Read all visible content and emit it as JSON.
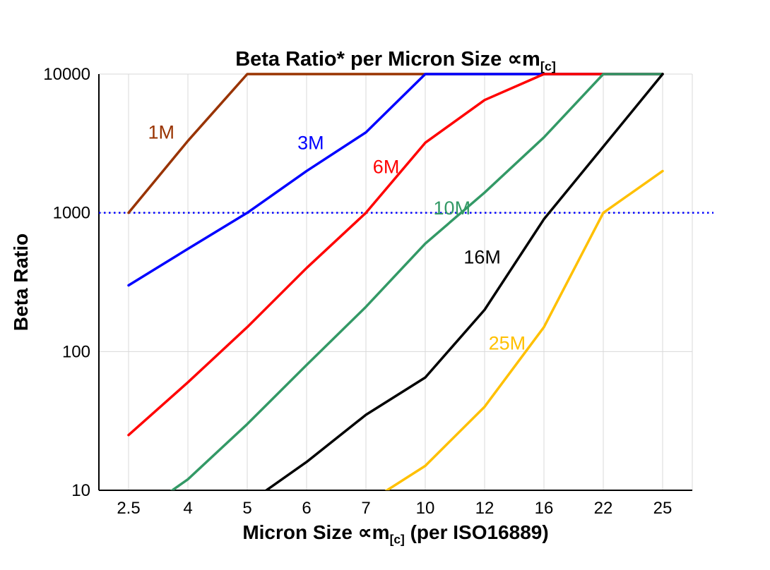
{
  "chart_data": {
    "type": "line",
    "title": {
      "text": "Beta Ratio* per Micron Size ∝m",
      "subscript": "[c]"
    },
    "xlabel": {
      "text": "Micron Size ∝m",
      "subscript": "[c]",
      "suffix": " (per ISO16889)"
    },
    "ylabel": "Beta Ratio",
    "x_categories": [
      "2.5",
      "4",
      "5",
      "6",
      "7",
      "10",
      "12",
      "16",
      "22",
      "25"
    ],
    "y_scale": "log",
    "y_ticks": [
      10,
      100,
      1000,
      10000
    ],
    "ylim": [
      10,
      10000
    ],
    "grid": true,
    "grid_color": "#d9d9d9",
    "axis_color": "#000000",
    "reference_line": {
      "value": 1000,
      "color": "#0000ff",
      "style": "dotted"
    },
    "series": [
      {
        "name": "1M",
        "color": "#993300",
        "values": [
          1000,
          3300,
          10000,
          10000,
          10000,
          10000,
          10000,
          10000,
          10000,
          10000
        ],
        "label_pos": {
          "xi": 0.55,
          "value": 3800
        }
      },
      {
        "name": "3M",
        "color": "#0000ff",
        "values": [
          300,
          550,
          1000,
          2000,
          3800,
          10000,
          10000,
          10000,
          10000,
          10000
        ],
        "label_pos": {
          "xi": 3.07,
          "value": 3200
        }
      },
      {
        "name": "6M",
        "color": "#ff0000",
        "values": [
          25,
          60,
          150,
          400,
          1000,
          3200,
          6500,
          10000,
          10000,
          10000
        ],
        "label_pos": {
          "xi": 4.34,
          "value": 2150
        }
      },
      {
        "name": "10M",
        "color": "#339966",
        "values": [
          6,
          12,
          30,
          80,
          210,
          600,
          1400,
          3500,
          10000,
          10000
        ],
        "label_pos": {
          "xi": 5.45,
          "value": 1080
        }
      },
      {
        "name": "16M",
        "color": "#000000",
        "values": [
          null,
          null,
          8,
          16,
          35,
          65,
          200,
          900,
          3000,
          10000
        ],
        "label_pos": {
          "xi": 5.96,
          "value": 480
        }
      },
      {
        "name": "25M",
        "color": "#ffc000",
        "values": [
          null,
          null,
          null,
          null,
          8,
          15,
          40,
          150,
          1000,
          2000
        ],
        "label_pos": {
          "xi": 6.38,
          "value": 115
        }
      }
    ]
  }
}
